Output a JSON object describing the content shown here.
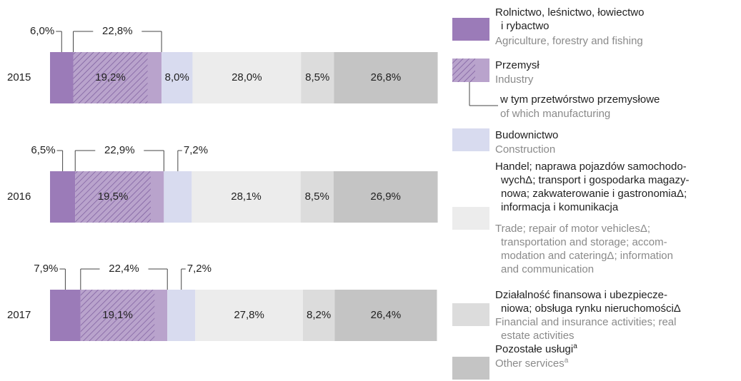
{
  "chart_data": {
    "type": "bar",
    "orientation": "horizontal",
    "stacked": true,
    "categories": [
      "2015",
      "2016",
      "2017"
    ],
    "xlim": [
      0,
      100
    ],
    "series": [
      {
        "name": "Rolnictwo, leśnictwo, łowiectwo\ni rybactwo",
        "name_en": "Agriculture, forestry and fishing",
        "color": "#9b7bb8",
        "values": [
          6.0,
          6.5,
          7.9
        ],
        "value_labels": [
          "6,0%",
          "6,5%",
          "7,9%"
        ]
      },
      {
        "name": "Przemysł",
        "name_en": "Industry",
        "color": "#b9a3cc",
        "values": [
          22.8,
          22.9,
          22.4
        ],
        "value_labels": [
          "22,8%",
          "22,9%",
          "22,4%"
        ],
        "of_which": {
          "name": "w tym przetwórstwo przemysłowe",
          "name_en": "of which manufacturing",
          "color": "#7a5a9c",
          "values": [
            19.2,
            19.5,
            19.1
          ],
          "value_labels": [
            "19,2%",
            "19,5%",
            "19,1%"
          ]
        }
      },
      {
        "name": "Budownictwo",
        "name_en": "Construction",
        "color": "#d8dbef",
        "values": [
          8.0,
          7.2,
          7.2
        ],
        "value_labels": [
          "8,0%",
          "7,2%",
          "7,2%"
        ]
      },
      {
        "name": "Handel; naprawa pojazdów samochodo-\nwychΔ; transport i gospodarka magazy-\nnowa; zakwaterowanie i gastronomiaΔ;\ninformacja i komunikacja",
        "name_en": "Trade; repair of motor vehiclesΔ;\ntransportation and storage; accom-\nmodation and cateringΔ; information\nand communication",
        "color": "#ececec",
        "values": [
          28.0,
          28.1,
          27.8
        ],
        "value_labels": [
          "28,0%",
          "28,1%",
          "27,8%"
        ]
      },
      {
        "name": "Działalność finansowa i ubezpiecze-\nniowa; obsługa rynku nieruchomościΔ",
        "name_en": "Financial and insurance activities; real\nestate activities",
        "color": "#dcdcdc",
        "values": [
          8.5,
          8.5,
          8.2
        ],
        "value_labels": [
          "8,5%",
          "8,5%",
          "8,2%"
        ]
      },
      {
        "name": "Pozostałe usługi",
        "name_en": "Other services",
        "note": "a",
        "color": "#c4c4c4",
        "values": [
          26.8,
          26.9,
          26.4
        ],
        "value_labels": [
          "26,8%",
          "26,9%",
          "26,4%"
        ]
      }
    ]
  }
}
